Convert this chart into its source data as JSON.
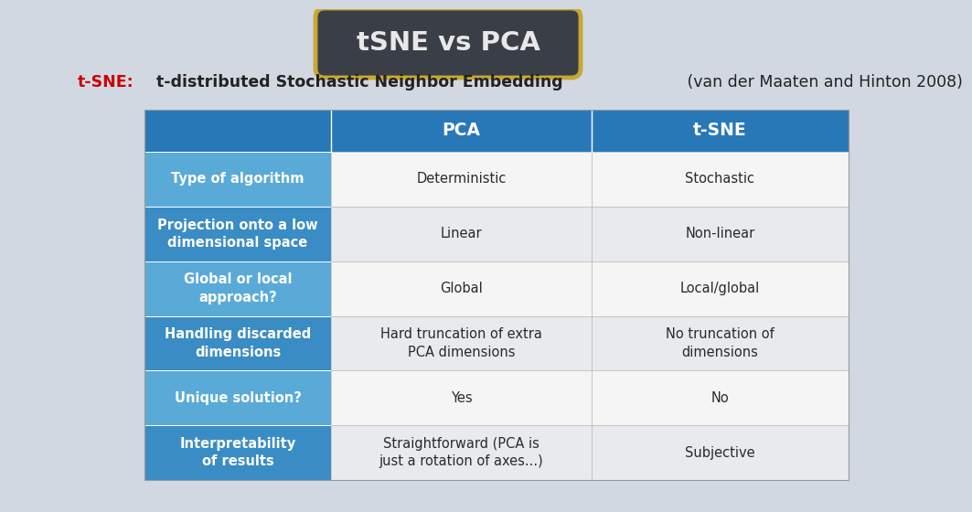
{
  "title": "tSNE vs PCA",
  "subtitle_parts": [
    {
      "text": "t-SNE:",
      "color": "#cc0000",
      "bold": true
    },
    {
      "text": " t-distributed Stochastic Neighbor Embedding",
      "color": "#222222",
      "bold": true
    },
    {
      "text": " (van der Maaten and Hinton 2008)",
      "color": "#222222",
      "bold": false
    }
  ],
  "col_headers": [
    "PCA",
    "t-SNE"
  ],
  "row_labels": [
    "Type of algorithm",
    "Projection onto a low\ndimensional space",
    "Global or local\napproach?",
    "Handling discarded\ndimensions",
    "Unique solution?",
    "Interpretability\nof results"
  ],
  "pca_values": [
    "Deterministic",
    "Linear",
    "Global",
    "Hard truncation of extra\nPCA dimensions",
    "Yes",
    "Straightforward (PCA is\njust a rotation of axes...)"
  ],
  "tsne_values": [
    "Stochastic",
    "Non-linear",
    "Local/global",
    "No truncation of\ndimensions",
    "No",
    "Subjective"
  ],
  "bg_color": "#d2d8e2",
  "header_bg": "#2878b8",
  "header_fg": "#ffffff",
  "row_label_bg_dark": "#3a8cc4",
  "row_label_bg_light": "#5aaad8",
  "cell_bg_light": "#e8eaed",
  "cell_bg_white": "#f5f5f5",
  "title_bg": "#3a3f47",
  "title_fg": "#e8e8e8",
  "title_border": "#c8a830",
  "subtitle_red": "#cc0000",
  "subtitle_dark": "#222222"
}
